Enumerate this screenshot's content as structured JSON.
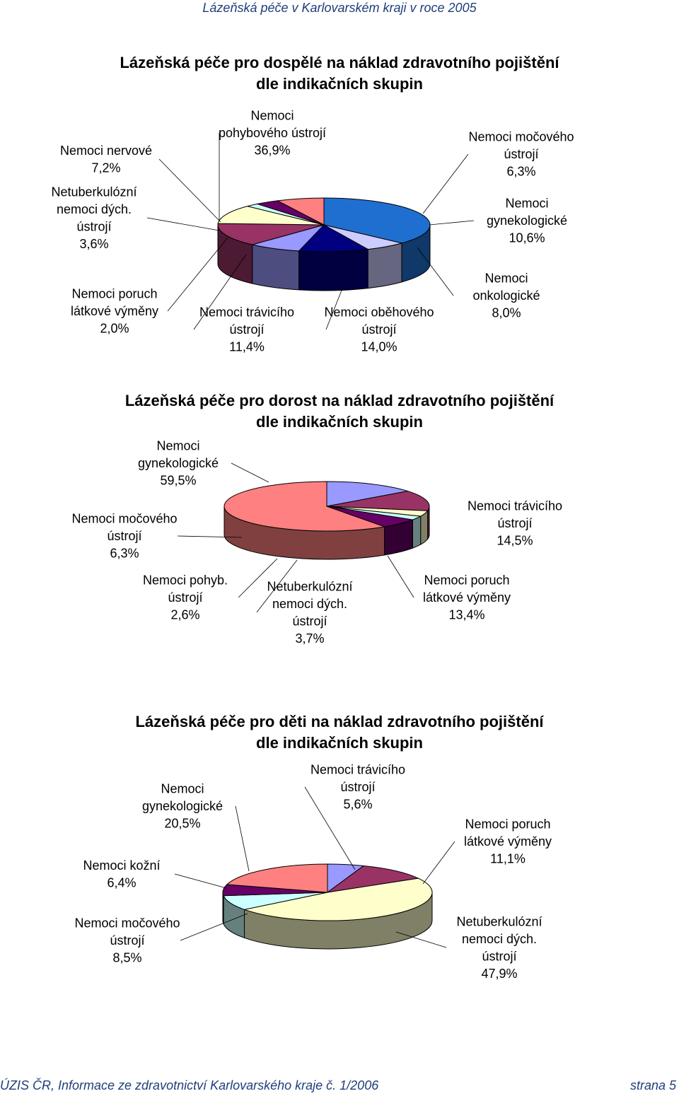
{
  "header": "Lázeňská péče v Karlovarském kraji v roce 2005",
  "footer": {
    "left": "ÚZIS ČR, Informace ze zdravotnictví Karlovarského kraje č. 1/2006",
    "right": "strana 5"
  },
  "chart_data": [
    {
      "type": "pie",
      "title": [
        "Lázeňská péče pro dospělé na náklad zdravotního pojištění",
        "dle indikačních skupin"
      ],
      "slices": [
        {
          "name": [
            "Nemoci",
            "pohybového ústrojí"
          ],
          "value": 36.9,
          "value_label": "36,9%",
          "color": "#1f6fd0"
        },
        {
          "name": [
            "Nemoci močového",
            "ústrojí"
          ],
          "value": 6.3,
          "value_label": "6,3%",
          "color": "#ccccff"
        },
        {
          "name": [
            "Nemoci",
            "gynekologické"
          ],
          "value": 10.6,
          "value_label": "10,6%",
          "color": "#000080"
        },
        {
          "name": [
            "Nemoci",
            "onkologické"
          ],
          "value": 8.0,
          "value_label": "8,0%",
          "color": "#9999ff"
        },
        {
          "name": [
            "Nemoci oběhového",
            "ústrojí"
          ],
          "value": 14.0,
          "value_label": "14,0%",
          "color": "#993366"
        },
        {
          "name": [
            "Nemoci trávicího",
            "ústrojí"
          ],
          "value": 11.4,
          "value_label": "11,4%",
          "color": "#ffffcc"
        },
        {
          "name": [
            "Nemoci poruch",
            "látkové výměny"
          ],
          "value": 2.0,
          "value_label": "2,0%",
          "color": "#ccffff"
        },
        {
          "name": [
            "Netuberkulózní",
            "nemoci dých.",
            "ústrojí"
          ],
          "value": 3.6,
          "value_label": "3,6%",
          "color": "#660066"
        },
        {
          "name": [
            "Nemoci nervové"
          ],
          "value": 7.2,
          "value_label": "7,2%",
          "color": "#ff8080"
        }
      ]
    },
    {
      "type": "pie",
      "title": [
        "Lázeňská péče pro dorost na náklad zdravotního pojištění",
        "dle indikačních skupin"
      ],
      "slices": [
        {
          "name": [
            "Nemoci trávicího",
            "ústrojí"
          ],
          "value": 14.5,
          "value_label": "14,5%",
          "color": "#9999ff"
        },
        {
          "name": [
            "Nemoci poruch",
            "látkové výměny"
          ],
          "value": 13.4,
          "value_label": "13,4%",
          "color": "#993366"
        },
        {
          "name": [
            "Netuberkulózní",
            "nemoci dých.",
            "ústrojí"
          ],
          "value": 3.7,
          "value_label": "3,7%",
          "color": "#ffffcc"
        },
        {
          "name": [
            "Nemoci pohyb.",
            "ústrojí"
          ],
          "value": 2.6,
          "value_label": "2,6%",
          "color": "#ccffff"
        },
        {
          "name": [
            "Nemoci močového",
            "ústrojí"
          ],
          "value": 6.3,
          "value_label": "6,3%",
          "color": "#660066"
        },
        {
          "name": [
            "Nemoci",
            "gynekologické"
          ],
          "value": 59.5,
          "value_label": "59,5%",
          "color": "#ff8080"
        }
      ]
    },
    {
      "type": "pie",
      "title": [
        "Lázeňská péče pro děti na náklad zdravotního pojištění",
        "dle indikačních skupin"
      ],
      "slices": [
        {
          "name": [
            "Nemoci trávicího",
            "ústrojí"
          ],
          "value": 5.6,
          "value_label": "5,6%",
          "color": "#9999ff"
        },
        {
          "name": [
            "Nemoci poruch",
            "látkové výměny"
          ],
          "value": 11.1,
          "value_label": "11,1%",
          "color": "#993366"
        },
        {
          "name": [
            "Netuberkulózní",
            "nemoci dých.",
            "ústrojí"
          ],
          "value": 47.9,
          "value_label": "47,9%",
          "color": "#ffffcc"
        },
        {
          "name": [
            "Nemoci močového",
            "ústrojí"
          ],
          "value": 8.5,
          "value_label": "8,5%",
          "color": "#ccffff"
        },
        {
          "name": [
            "Nemoci kožní"
          ],
          "value": 6.4,
          "value_label": "6,4%",
          "color": "#660066"
        },
        {
          "name": [
            "Nemoci",
            "gynekologické"
          ],
          "value": 20.5,
          "value_label": "20,5%",
          "color": "#ff8080"
        }
      ]
    }
  ]
}
